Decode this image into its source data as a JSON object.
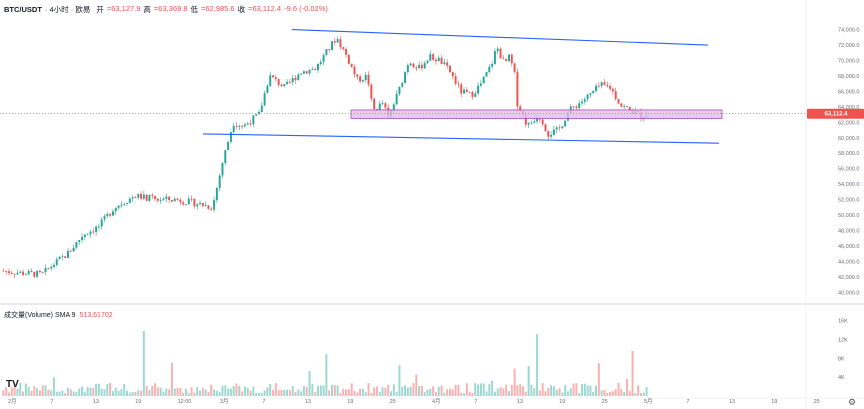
{
  "header": {
    "symbol": "BTC/USDT",
    "meta": "· 4小时 · 欧易",
    "open_label": "开",
    "open_value": "=63,127.9",
    "high_label": "高",
    "high_value": "=63,369.8",
    "low_label": "低",
    "low_value": "=62,985.6",
    "close_label": "收",
    "close_value": "=63,112.4",
    "change_value": "-9.6 (-0.02%)"
  },
  "volume_pane": {
    "label": "成交量(Volume) SMA 9",
    "value": "513.61702",
    "axis_labels": [
      "16K",
      "12K",
      "8K",
      "4K"
    ]
  },
  "price_axis": {
    "labels": [
      "74,000.0",
      "72,000.0",
      "70,000.0",
      "68,000.0",
      "66,000.0",
      "64,000.0",
      "62,000.0",
      "60,000.0",
      "58,000.0",
      "56,000.0",
      "54,000.0",
      "52,000.0",
      "50,000.0",
      "48,000.0",
      "46,000.0",
      "44,000.0",
      "42,000.0",
      "40,000.0"
    ],
    "current_price": "63,112.4"
  },
  "time_axis": {
    "labels": [
      "2月",
      "7",
      "13",
      "19",
      "12:00",
      "3月",
      "7",
      "13",
      "19",
      "25",
      "4月",
      "7",
      "13",
      "19",
      "25",
      "5月",
      "7",
      "13",
      "19",
      "25"
    ]
  },
  "colors": {
    "up": "#26a69a",
    "down": "#ef5350",
    "trendline": "#2962ff",
    "zone_fill": "#e1bee7",
    "zone_border": "#ab47bc",
    "price_tag": "#ef5350"
  },
  "chart_data": {
    "type": "candlestick",
    "title": "BTC/USDT · 4小时 · 欧易",
    "ylim": [
      39000,
      75500
    ],
    "y_ticks": [
      40000,
      42000,
      44000,
      46000,
      48000,
      50000,
      52000,
      54000,
      56000,
      58000,
      60000,
      62000,
      64000,
      66000,
      68000,
      70000,
      72000,
      74000
    ],
    "x_ticks": [
      "2月",
      "7",
      "13",
      "19",
      "12:00",
      "3月",
      "7",
      "13",
      "19",
      "25",
      "4月",
      "7",
      "13",
      "19",
      "25",
      "5月",
      "7",
      "13",
      "19",
      "25"
    ],
    "price_path": [
      {
        "x": 0,
        "y": 42800
      },
      {
        "x": 0.04,
        "y": 42500
      },
      {
        "x": 0.08,
        "y": 42300
      },
      {
        "x": 0.1,
        "y": 43500
      },
      {
        "x": 0.13,
        "y": 45000
      },
      {
        "x": 0.16,
        "y": 47500
      },
      {
        "x": 0.19,
        "y": 48500
      },
      {
        "x": 0.22,
        "y": 51000
      },
      {
        "x": 0.26,
        "y": 52500
      },
      {
        "x": 0.3,
        "y": 52000
      },
      {
        "x": 0.34,
        "y": 52000
      },
      {
        "x": 0.38,
        "y": 51500
      },
      {
        "x": 0.41,
        "y": 51000
      },
      {
        "x": 0.43,
        "y": 57000
      },
      {
        "x": 0.45,
        "y": 62000
      },
      {
        "x": 0.47,
        "y": 61500
      },
      {
        "x": 0.5,
        "y": 63000
      },
      {
        "x": 0.52,
        "y": 68000
      },
      {
        "x": 0.55,
        "y": 66500
      },
      {
        "x": 0.58,
        "y": 68500
      },
      {
        "x": 0.61,
        "y": 69000
      },
      {
        "x": 0.63,
        "y": 71000
      },
      {
        "x": 0.65,
        "y": 73000
      },
      {
        "x": 0.67,
        "y": 70500
      },
      {
        "x": 0.69,
        "y": 67500
      },
      {
        "x": 0.71,
        "y": 68000
      },
      {
        "x": 0.72,
        "y": 63500
      },
      {
        "x": 0.74,
        "y": 64500
      },
      {
        "x": 0.75,
        "y": 62500
      },
      {
        "x": 0.77,
        "y": 66000
      },
      {
        "x": 0.79,
        "y": 70000
      },
      {
        "x": 0.81,
        "y": 69000
      },
      {
        "x": 0.83,
        "y": 70500
      },
      {
        "x": 0.85,
        "y": 70000
      },
      {
        "x": 0.87,
        "y": 68500
      },
      {
        "x": 0.89,
        "y": 66000
      },
      {
        "x": 0.91,
        "y": 65500
      },
      {
        "x": 0.93,
        "y": 67000
      },
      {
        "x": 0.95,
        "y": 69500
      },
      {
        "x": 0.96,
        "y": 71800
      },
      {
        "x": 0.975,
        "y": 69500
      },
      {
        "x": 0.985,
        "y": 70500
      },
      {
        "x": 0.995,
        "y": 68000
      },
      {
        "x": 1.0,
        "y": 64500
      }
    ],
    "price_path_tail": [
      {
        "x": 1.0,
        "y": 64500
      },
      {
        "x": 1.02,
        "y": 61500
      },
      {
        "x": 1.04,
        "y": 63000
      },
      {
        "x": 1.06,
        "y": 60500
      },
      {
        "x": 1.08,
        "y": 61000
      },
      {
        "x": 1.1,
        "y": 63500
      },
      {
        "x": 1.12,
        "y": 64500
      },
      {
        "x": 1.14,
        "y": 65500
      },
      {
        "x": 1.16,
        "y": 66800
      },
      {
        "x": 1.18,
        "y": 66500
      },
      {
        "x": 1.2,
        "y": 64200
      },
      {
        "x": 1.22,
        "y": 63500
      },
      {
        "x": 1.24,
        "y": 62800
      },
      {
        "x": 1.25,
        "y": 63100
      }
    ],
    "annotations": [
      {
        "kind": "trendline",
        "label": "upper channel",
        "from": [
          0.0,
          74000
        ],
        "to": [
          1.0,
          72000
        ]
      },
      {
        "kind": "trendline",
        "label": "lower channel",
        "from": [
          0.0,
          60500
        ],
        "to": [
          1.0,
          59300
        ]
      },
      {
        "kind": "zone",
        "label": "support zone",
        "y_low": 62500,
        "y_high": 63600
      }
    ],
    "current_price": 63112.4,
    "volume": {
      "ylim": [
        0,
        17000
      ],
      "y_ticks": [
        4000,
        8000,
        12000,
        16000
      ],
      "sma_label": "SMA 9",
      "sma_value": 513.61702
    }
  }
}
